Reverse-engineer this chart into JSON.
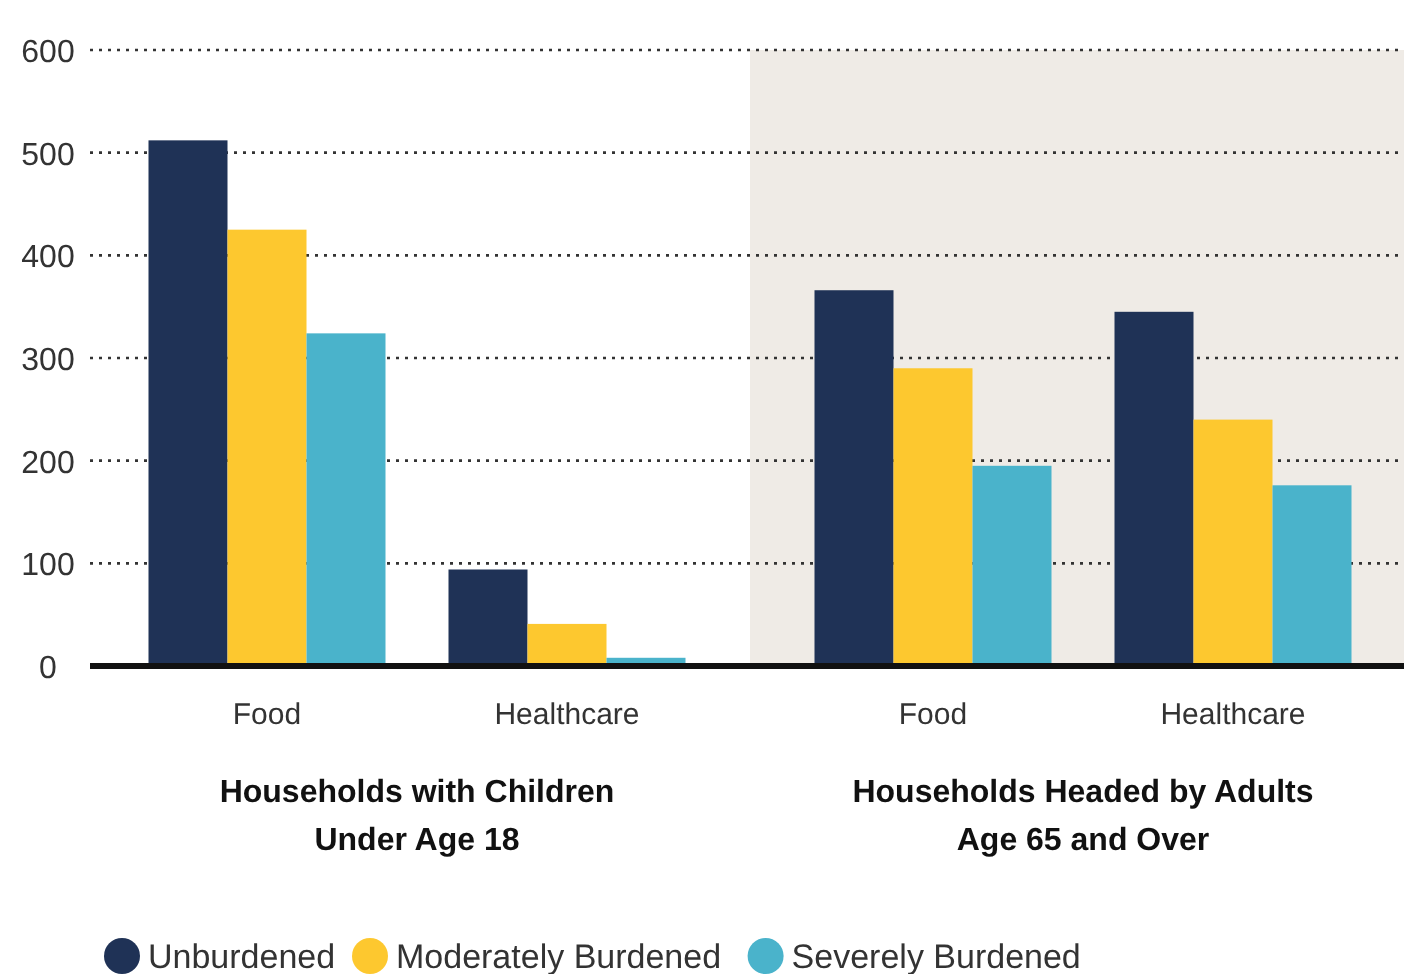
{
  "chart_data": {
    "type": "bar",
    "categories": [
      "Food",
      "Healthcare",
      "Food",
      "Healthcare"
    ],
    "series": [
      {
        "name": "Unburdened",
        "color": "#1f3256",
        "values": [
          512,
          94,
          366,
          345
        ]
      },
      {
        "name": "Moderately Burdened",
        "color": "#fdc82f",
        "values": [
          425,
          41,
          290,
          240
        ]
      },
      {
        "name": "Severely Burdened",
        "color": "#4ab3cb",
        "values": [
          324,
          8,
          195,
          176
        ]
      }
    ],
    "ylim": [
      0,
      600
    ],
    "yticks": [
      0,
      100,
      200,
      300,
      400,
      500,
      600
    ],
    "grid": "y",
    "legend": "bottom left",
    "annotations": [
      "Households with Children\nUnder Age 18",
      "Households Headed by Adults\nAge 65 and Over"
    ]
  }
}
